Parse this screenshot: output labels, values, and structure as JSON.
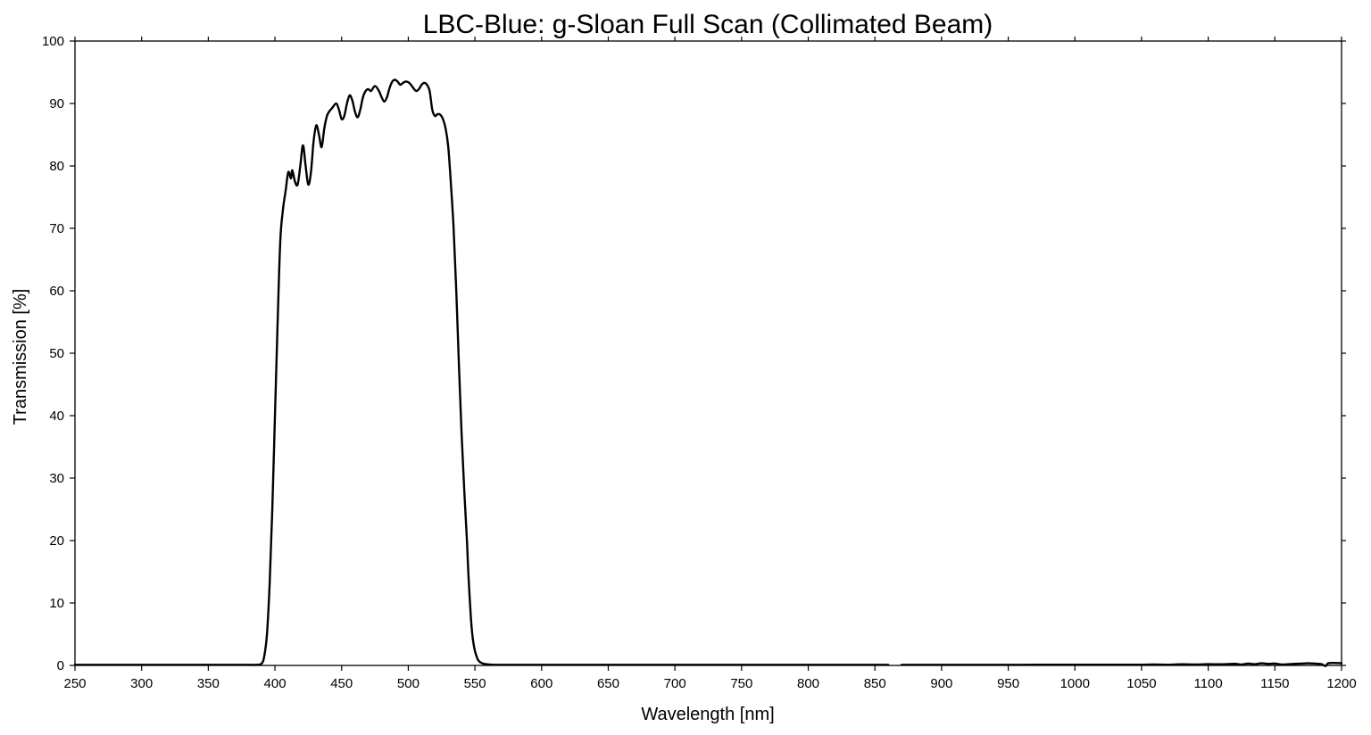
{
  "chart_data": {
    "type": "line",
    "title": "LBC-Blue: g-Sloan Full Scan (Collimated Beam)",
    "xlabel": "Wavelength [nm]",
    "ylabel": "Transmission [%]",
    "xlim": [
      250,
      1200
    ],
    "ylim": [
      0,
      100
    ],
    "grid": false,
    "legend": "none",
    "line_color": "#000000",
    "x_ticks": [
      250,
      300,
      350,
      400,
      450,
      500,
      550,
      600,
      650,
      700,
      750,
      800,
      850,
      900,
      950,
      1000,
      1050,
      1100,
      1150,
      1200
    ],
    "y_ticks": [
      0,
      10,
      20,
      30,
      40,
      50,
      60,
      70,
      80,
      90,
      100
    ],
    "series": [
      {
        "segments": [
          {
            "x": [
              250,
              300,
              350,
              380,
              386,
              390,
              392,
              394,
              396,
              398,
              400,
              402,
              404,
              406,
              408,
              410,
              412,
              413,
              415,
              417,
              419,
              421,
              423,
              425,
              427,
              429,
              431,
              433,
              435,
              437,
              439,
              441,
              443,
              446,
              448,
              450,
              452,
              454,
              456,
              458,
              460,
              462,
              464,
              466,
              468,
              470,
              472,
              475,
              478,
              480,
              482,
              484,
              486,
              488,
              490,
              492,
              494,
              496,
              498,
              500,
              502,
              504,
              506,
              508,
              510,
              512,
              514,
              516,
              518,
              520,
              522,
              524,
              526,
              528,
              530,
              532,
              534,
              536,
              538,
              540,
              542,
              544,
              545,
              546,
              547,
              548,
              549,
              550,
              551,
              552,
              553,
              554,
              555,
              556,
              557,
              558,
              559,
              560,
              561,
              562,
              563,
              564,
              566,
              568,
              570,
              575,
              580,
              590,
              600,
              650,
              700,
              750,
              800,
              860
            ],
            "y": [
              0.1,
              0.1,
              0.1,
              0.1,
              0.1,
              0.3,
              1.5,
              5,
              13,
              25,
              40,
              55,
              68,
              73,
              76,
              79,
              78,
              79.3,
              77.5,
              77,
              80,
              83.3,
              80,
              77,
              79,
              84,
              86.5,
              85,
              83,
              86,
              88,
              88.8,
              89.3,
              90,
              89,
              87.5,
              88,
              90,
              91.3,
              90.5,
              88.7,
              87.8,
              89,
              91,
              92,
              92.3,
              92,
              92.8,
              92,
              91,
              90.3,
              91,
              92.5,
              93.5,
              93.8,
              93.5,
              93,
              93.3,
              93.5,
              93.4,
              93,
              92.4,
              92,
              92.3,
              93,
              93.3,
              93,
              92,
              89,
              88,
              88.3,
              88.2,
              87.5,
              86,
              83,
              77,
              70,
              60,
              48,
              37,
              28,
              20,
              15,
              11,
              7.5,
              5,
              3.4,
              2.3,
              1.6,
              1,
              0.7,
              0.5,
              0.4,
              0.3,
              0.25,
              0.2,
              0.2,
              0.15,
              0.15,
              0.12,
              0.12,
              0.1,
              0.1,
              0.1,
              0.1,
              0.1,
              0.1,
              0.1,
              0.1,
              0.1,
              0.1,
              0.1,
              0.1,
              0.1
            ]
          },
          {
            "x": [
              870,
              900,
              950,
              1000,
              1050,
              1060,
              1070,
              1080,
              1090,
              1100,
              1110,
              1120,
              1125,
              1130,
              1135,
              1140,
              1145,
              1150,
              1155,
              1160,
              1165,
              1170,
              1175,
              1180,
              1185,
              1188,
              1190,
              1195,
              1200
            ],
            "y": [
              0.1,
              0.1,
              0.1,
              0.12,
              0.12,
              0.15,
              0.12,
              0.18,
              0.15,
              0.2,
              0.18,
              0.25,
              0.15,
              0.3,
              0.2,
              0.35,
              0.25,
              0.3,
              0.15,
              0.2,
              0.25,
              0.3,
              0.35,
              0.3,
              0.2,
              -0.1,
              0.35,
              0.4,
              0.35
            ]
          }
        ]
      }
    ]
  }
}
